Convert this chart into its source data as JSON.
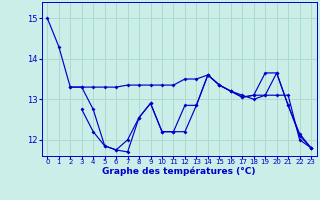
{
  "title": "Graphe des températures (°C)",
  "background_color": "#cceee8",
  "grid_color": "#aaddcc",
  "line_color": "#0000cc",
  "xlim": [
    -0.5,
    23.5
  ],
  "ylim": [
    11.6,
    15.4
  ],
  "yticks": [
    12,
    13,
    14,
    15
  ],
  "xticks": [
    0,
    1,
    2,
    3,
    4,
    5,
    6,
    7,
    8,
    9,
    10,
    11,
    12,
    13,
    14,
    15,
    16,
    17,
    18,
    19,
    20,
    21,
    22,
    23
  ],
  "s1_x": [
    0,
    1,
    2,
    3,
    4,
    5,
    6,
    7,
    8,
    9,
    10,
    11,
    12,
    13,
    14,
    15,
    16,
    17,
    18,
    19,
    20,
    21,
    22,
    23
  ],
  "s1_y": [
    15.0,
    14.3,
    13.3,
    13.3,
    12.75,
    11.85,
    11.75,
    12.0,
    12.55,
    12.9,
    12.2,
    12.2,
    12.85,
    12.85,
    13.6,
    13.35,
    13.2,
    13.05,
    13.1,
    13.1,
    13.65,
    12.85,
    12.1,
    11.8
  ],
  "s2_x": [
    2,
    3,
    4,
    5,
    6,
    7,
    8,
    9,
    10,
    11,
    12,
    13,
    14,
    15,
    16,
    17,
    18,
    19,
    20,
    21,
    22,
    23
  ],
  "s2_y": [
    13.3,
    13.3,
    13.3,
    13.3,
    13.3,
    13.35,
    13.35,
    13.35,
    13.35,
    13.35,
    13.5,
    13.5,
    13.6,
    13.35,
    13.2,
    13.1,
    13.0,
    13.1,
    13.1,
    13.1,
    12.0,
    11.8
  ],
  "s3_x": [
    3,
    4,
    5,
    6,
    7,
    8,
    9,
    10,
    11,
    12,
    13,
    14,
    15,
    16,
    17,
    18,
    19,
    20,
    21,
    22,
    23
  ],
  "s3_y": [
    12.75,
    12.2,
    11.85,
    11.75,
    11.7,
    12.55,
    12.9,
    12.2,
    12.2,
    12.2,
    12.85,
    13.6,
    13.35,
    13.2,
    13.05,
    13.1,
    13.65,
    13.65,
    12.85,
    12.15,
    11.8
  ]
}
